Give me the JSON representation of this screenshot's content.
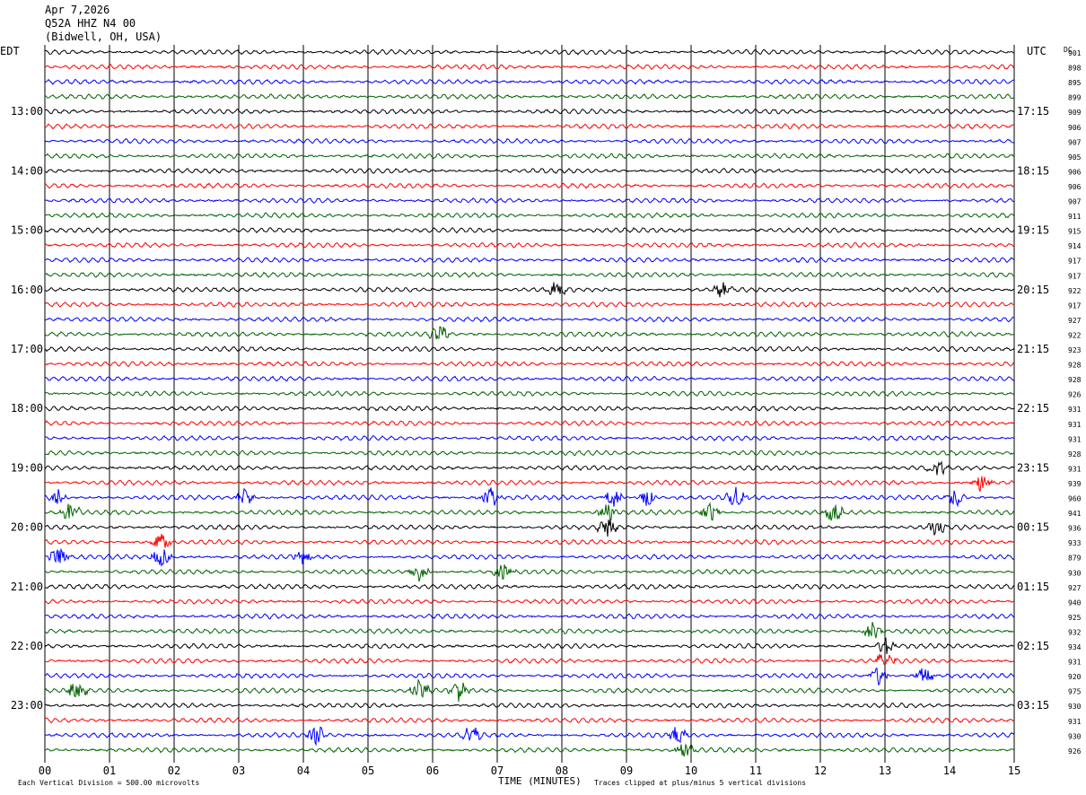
{
  "header": {
    "date": "Apr 7,2026",
    "station": "Q52A HHZ N4 00",
    "location": "(Bidwell, OH, USA)"
  },
  "left_tz": "EDT",
  "right_tz": "UTC",
  "dc_label": "DC",
  "footer": {
    "scale_note": "Each Vertical Division =  500.00 microvolts",
    "xlabel": "TIME (MINUTES)",
    "clip_note": "Traces clipped at plus/minus 5 vertical divisions"
  },
  "chart_data": {
    "type": "line",
    "x_ticks": [
      "00",
      "01",
      "02",
      "03",
      "04",
      "05",
      "06",
      "07",
      "08",
      "09",
      "10",
      "11",
      "12",
      "13",
      "14",
      "15"
    ],
    "xlim": [
      0,
      15
    ],
    "left_hour_labels": [
      "13:00",
      "14:00",
      "15:00",
      "16:00",
      "17:00",
      "18:00",
      "19:00",
      "20:00",
      "21:00",
      "22:00",
      "23:00"
    ],
    "right_hour_labels": [
      "17:15",
      "18:15",
      "19:15",
      "20:15",
      "21:15",
      "22:15",
      "23:15",
      "00:15",
      "01:15",
      "02:15",
      "03:15"
    ],
    "trace_colors": [
      "#000000",
      "#ff0000",
      "#0000ff",
      "#006400"
    ],
    "dc_offsets": [
      901,
      898,
      895,
      899,
      909,
      906,
      907,
      905,
      906,
      906,
      907,
      911,
      915,
      914,
      917,
      917,
      922,
      917,
      927,
      922,
      923,
      928,
      928,
      926,
      931,
      931,
      931,
      928,
      931,
      939,
      960,
      941,
      936,
      933,
      879,
      930,
      927,
      940,
      925,
      932,
      934,
      931,
      920,
      975,
      930,
      931,
      930,
      926
    ],
    "event_minutes": [
      [],
      [],
      [],
      [],
      [],
      [],
      [],
      [],
      [],
      [],
      [],
      [],
      [],
      [],
      [],
      [],
      [
        7.9,
        10.5
      ],
      [],
      [],
      [
        6.1
      ],
      [],
      [],
      [],
      [],
      [],
      [],
      [],
      [],
      [
        13.8
      ],
      [
        14.5
      ],
      [
        0.2,
        3.1,
        6.9,
        8.8,
        9.3,
        10.7,
        14.1
      ],
      [
        0.4,
        8.7,
        10.3,
        12.2
      ],
      [
        8.7,
        13.8
      ],
      [
        1.8
      ],
      [
        0.2,
        1.8,
        4.0
      ],
      [
        5.8,
        7.1
      ],
      [],
      [],
      [],
      [
        12.8
      ],
      [
        13.0
      ],
      [
        13.0
      ],
      [
        12.9,
        13.6
      ],
      [
        0.5,
        5.8,
        6.4
      ],
      [],
      [],
      [
        4.2,
        6.6,
        9.8
      ],
      [
        9.9
      ]
    ]
  }
}
